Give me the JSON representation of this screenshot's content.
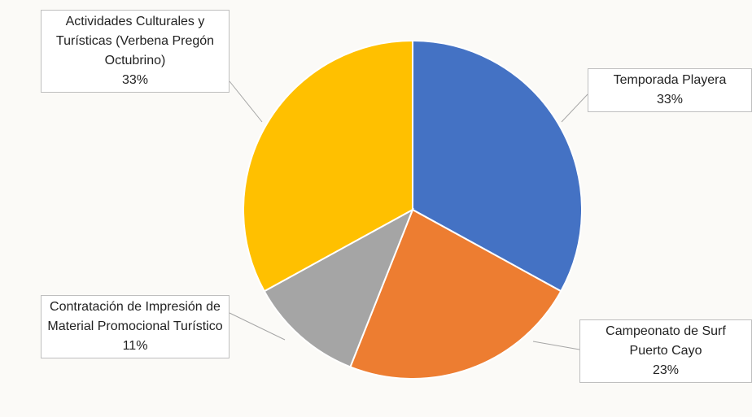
{
  "chart_data": {
    "type": "pie",
    "categories": [
      "Temporada Playera",
      "Campeonato de Surf Puerto Cayo",
      "Contratación de Impresión de Material Promocional Turístico",
      "Actividades Culturales y Turísticas (Verbena Pregón Octubrino)"
    ],
    "values": [
      33,
      23,
      11,
      33
    ],
    "value_labels": [
      "33%",
      "23%",
      "11%",
      "33%"
    ],
    "colors": [
      "#4472c4",
      "#ed7d31",
      "#a5a5a5",
      "#ffc000"
    ]
  }
}
